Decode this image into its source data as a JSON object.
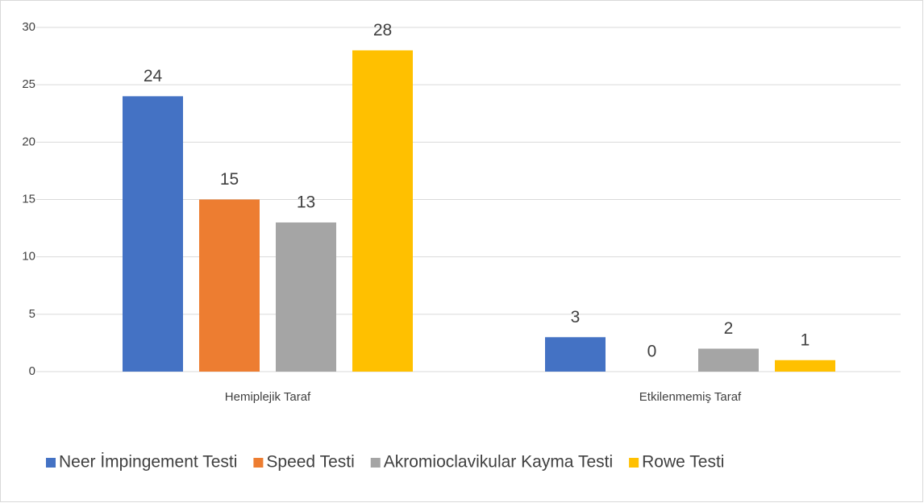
{
  "chart_data": {
    "type": "bar",
    "categories": [
      "Hemiplejik Taraf",
      "Etkilenmemiş Taraf"
    ],
    "series": [
      {
        "name": "Neer İmpingement Testi",
        "color": "#4472c4",
        "values": [
          24,
          3
        ]
      },
      {
        "name": "Speed Testi",
        "color": "#ed7d31",
        "values": [
          15,
          0
        ]
      },
      {
        "name": "Akromioclavikular Kayma Testi",
        "color": "#a5a5a5",
        "values": [
          13,
          2
        ]
      },
      {
        "name": "Rowe Testi",
        "color": "#ffc000",
        "values": [
          28,
          1
        ]
      }
    ],
    "ylim": [
      0,
      30
    ],
    "yticks": [
      0,
      5,
      10,
      15,
      20,
      25,
      30
    ],
    "grid": true,
    "legend": "bottom"
  }
}
